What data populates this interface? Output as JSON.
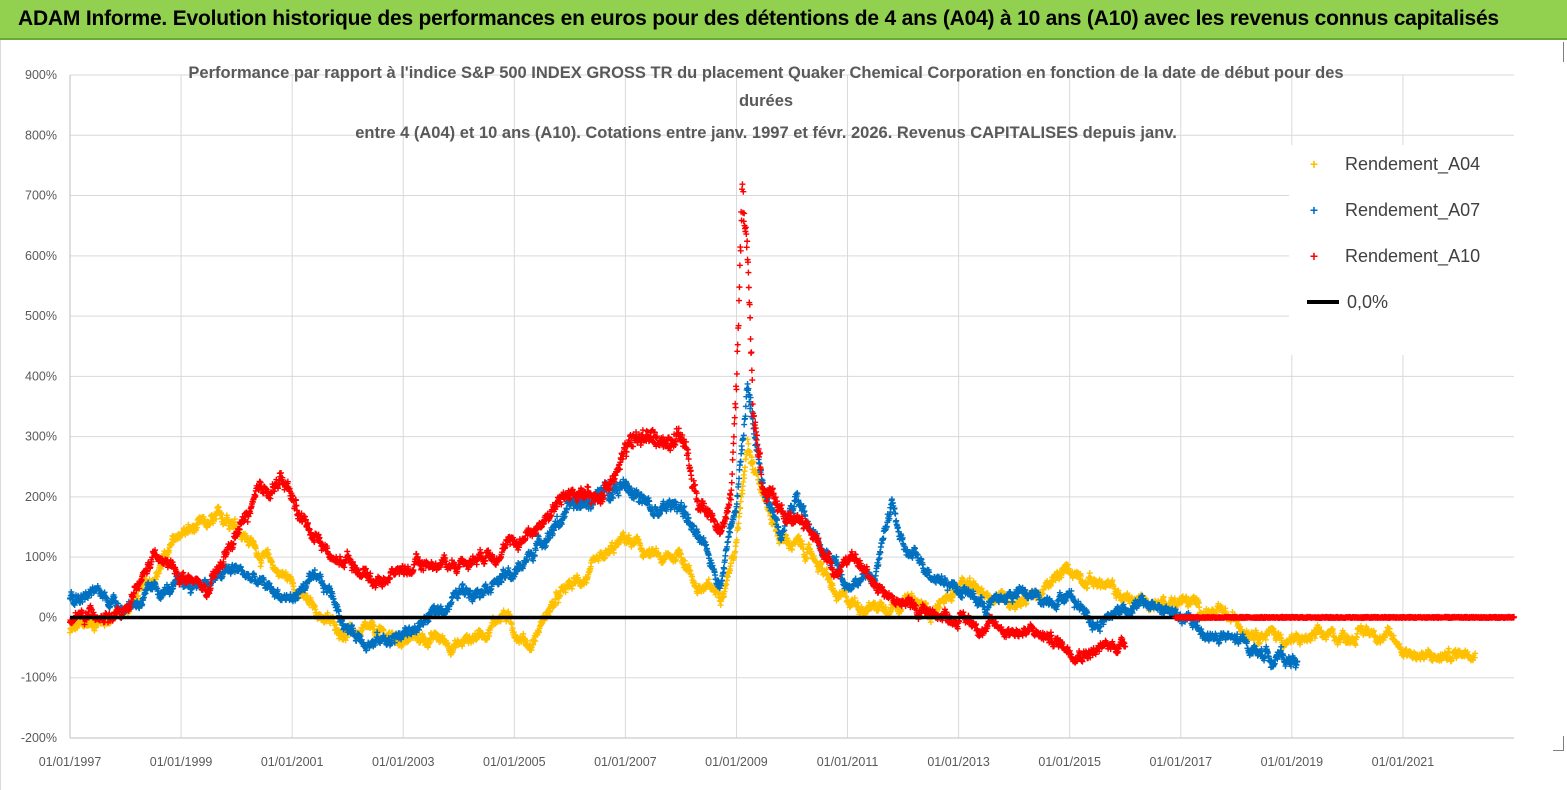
{
  "header": {
    "title": "ADAM Informe. Evolution historique des performances en euros pour des détentions de 4 ans (A04) à 10 ans (A10) avec les revenus connus capitalisés"
  },
  "chart_data": {
    "type": "scatter",
    "title_lines": [
      "Performance par rapport à l'indice S&P 500 INDEX GROSS TR  du placement Quaker Chemical Corporation en fonction de la date de début pour des",
      "durées",
      "entre 4 (A04) et 10 ans (A10).  Cotations entre janv. 1997 et févr.  2026. Revenus CAPITALISES depuis janv."
    ],
    "ylim": [
      -200,
      900
    ],
    "xlim": [
      1997.0,
      2023.0
    ],
    "y_ticks": [
      {
        "value": 900,
        "label": "900%"
      },
      {
        "value": 800,
        "label": "800%"
      },
      {
        "value": 700,
        "label": "700%"
      },
      {
        "value": 600,
        "label": "600%"
      },
      {
        "value": 500,
        "label": "500%"
      },
      {
        "value": 400,
        "label": "400%"
      },
      {
        "value": 300,
        "label": "300%"
      },
      {
        "value": 200,
        "label": "200%"
      },
      {
        "value": 100,
        "label": "100%"
      },
      {
        "value": 0,
        "label": "0%"
      },
      {
        "value": -100,
        "label": "-100%"
      },
      {
        "value": -200,
        "label": "-200%"
      }
    ],
    "x_ticks": [
      {
        "value": 1997.0,
        "label": "01/01/1997"
      },
      {
        "value": 1999.0,
        "label": "01/01/1999"
      },
      {
        "value": 2001.0,
        "label": "01/01/2001"
      },
      {
        "value": 2003.0,
        "label": "01/01/2003"
      },
      {
        "value": 2005.0,
        "label": "01/01/2005"
      },
      {
        "value": 2007.0,
        "label": "01/01/2007"
      },
      {
        "value": 2009.0,
        "label": "01/01/2009"
      },
      {
        "value": 2011.0,
        "label": "01/01/2011"
      },
      {
        "value": 2013.0,
        "label": "01/01/2013"
      },
      {
        "value": 2015.0,
        "label": "01/01/2015"
      },
      {
        "value": 2017.0,
        "label": "01/01/2017"
      },
      {
        "value": 2019.0,
        "label": "01/01/2019"
      },
      {
        "value": 2021.0,
        "label": "01/01/2021"
      }
    ],
    "series": [
      {
        "name": "Rendement_A04",
        "color": "#ffc000",
        "x": [
          1997.0,
          1997.5,
          1998.0,
          1998.5,
          1999.0,
          1999.5,
          1999.9,
          2000.3,
          2000.7,
          2001.0,
          2001.3,
          2001.7,
          2002.0,
          2002.5,
          2003.0,
          2003.5,
          2004.0,
          2004.5,
          2004.8,
          2005.0,
          2005.3,
          2005.6,
          2006.0,
          2006.5,
          2007.0,
          2007.3,
          2007.7,
          2008.0,
          2008.3,
          2008.7,
          2009.0,
          2009.2,
          2009.5,
          2009.8,
          2010.1,
          2010.5,
          2010.8,
          2011.0,
          2011.5,
          2012.0,
          2012.5,
          2013.0,
          2013.5,
          2014.0,
          2014.5,
          2015.0,
          2015.5,
          2016.0,
          2016.5,
          2017.0,
          2017.5,
          2018.0,
          2018.5,
          2019.0,
          2019.5,
          2020.0,
          2020.5,
          2021.0,
          2021.5,
          2022.0,
          2022.3
        ],
        "values": [
          -25,
          -5,
          10,
          70,
          140,
          150,
          170,
          120,
          80,
          60,
          20,
          -10,
          -25,
          -30,
          -35,
          -35,
          -45,
          -20,
          10,
          -20,
          -45,
          10,
          50,
          80,
          130,
          110,
          90,
          110,
          50,
          40,
          120,
          300,
          200,
          130,
          120,
          90,
          30,
          25,
          20,
          30,
          10,
          50,
          40,
          30,
          40,
          80,
          60,
          30,
          25,
          30,
          10,
          -10,
          -20,
          -40,
          -35,
          -30,
          -20,
          -50,
          -70,
          -60,
          -45
        ]
      },
      {
        "name": "Rendement_A07",
        "color": "#0070c0",
        "x": [
          1997.0,
          1997.5,
          1998.0,
          1998.5,
          1999.0,
          1999.5,
          2000.0,
          2000.5,
          2001.0,
          2001.3,
          2001.7,
          2002.0,
          2002.5,
          2003.0,
          2003.5,
          2004.0,
          2004.5,
          2005.0,
          2005.5,
          2006.0,
          2006.5,
          2007.0,
          2007.5,
          2008.0,
          2008.3,
          2008.7,
          2009.0,
          2009.2,
          2009.5,
          2009.8,
          2010.1,
          2010.5,
          2010.8,
          2011.0,
          2011.5,
          2011.8,
          2012.0,
          2012.5,
          2013.0,
          2013.5,
          2014.0,
          2014.5,
          2015.0,
          2015.5,
          2016.0,
          2016.5,
          2017.0,
          2017.5,
          2018.0,
          2018.5,
          2019.0,
          2019.1
        ],
        "values": [
          35,
          40,
          20,
          40,
          50,
          60,
          80,
          50,
          30,
          60,
          40,
          -20,
          -40,
          -30,
          0,
          40,
          60,
          70,
          130,
          180,
          200,
          230,
          170,
          190,
          130,
          60,
          200,
          380,
          200,
          150,
          210,
          110,
          90,
          60,
          70,
          190,
          110,
          80,
          50,
          20,
          40,
          30,
          40,
          -10,
          20,
          20,
          0,
          -30,
          -40,
          -60,
          -70,
          -70
        ]
      },
      {
        "name": "Rendement_A10",
        "color": "#ff0000",
        "x": [
          1997.0,
          1997.5,
          1998.0,
          1998.5,
          1999.0,
          1999.5,
          2000.0,
          2000.4,
          2000.8,
          2001.2,
          2001.5,
          2001.8,
          2002.0,
          2002.5,
          2003.0,
          2003.5,
          2004.0,
          2004.5,
          2005.0,
          2005.5,
          2006.0,
          2006.5,
          2007.0,
          2007.3,
          2007.7,
          2008.0,
          2008.3,
          2008.7,
          2008.9,
          2009.0,
          2009.1,
          2009.2,
          2009.3,
          2009.5,
          2009.8,
          2010.1,
          2010.5,
          2010.8,
          2011.0,
          2011.5,
          2012.0,
          2012.5,
          2013.0,
          2013.5,
          2014.0,
          2014.5,
          2015.0,
          2015.5,
          2016.0
        ],
        "values": [
          -10,
          10,
          0,
          100,
          70,
          40,
          140,
          200,
          230,
          160,
          130,
          90,
          100,
          60,
          80,
          90,
          90,
          110,
          120,
          160,
          210,
          190,
          280,
          300,
          290,
          310,
          190,
          150,
          200,
          380,
          700,
          600,
          350,
          200,
          180,
          160,
          120,
          80,
          100,
          60,
          20,
          10,
          0,
          -15,
          -20,
          -30,
          -50,
          -55,
          -40
        ]
      }
    ],
    "legend": [
      {
        "label": "Rendement_A04",
        "marker": "+",
        "color": "#ffc000"
      },
      {
        "label": "Rendement_A07",
        "marker": "+",
        "color": "#0070c0"
      },
      {
        "label": "Rendement_A10",
        "marker": "+",
        "color": "#ff0000"
      },
      {
        "label": "0,0%",
        "marker": "line",
        "color": "#000000"
      }
    ],
    "zero_line": {
      "label": "0,0%",
      "value": 0,
      "color": "#000000"
    },
    "grid": true
  }
}
